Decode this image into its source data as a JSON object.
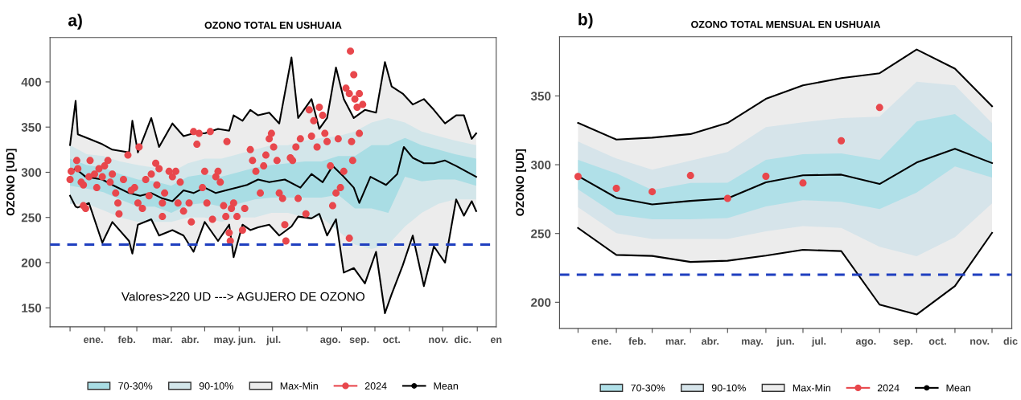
{
  "chart_data": [
    {
      "type": "line",
      "title": "OZONO TOTAL EN USHUAIA",
      "ylabel": "OZONO [UD]",
      "annotations": [
        "a)",
        "Valores>220 UD ---> AGUJERO DE OZONO"
      ],
      "xlim": [
        "2023-12-14",
        "2025-01-18"
      ],
      "ylim": [
        129,
        449
      ],
      "yticks": [
        150,
        200,
        250,
        300,
        350,
        400
      ],
      "xticks": [
        {
          "value": "2024-01-01",
          "label": null
        },
        {
          "value": "2024-02-01",
          "label": null
        },
        {
          "value": "2024-03-01",
          "label": null
        },
        {
          "value": "2024-04-01",
          "label": null
        },
        {
          "value": "2024-05-01",
          "label": null
        },
        {
          "value": "2024-06-01",
          "label": null
        },
        {
          "value": "2024-07-01",
          "label": null
        },
        {
          "value": "2024-08-01",
          "label": null
        },
        {
          "value": "2024-09-01",
          "label": null
        },
        {
          "value": "2024-10-01",
          "label": null
        },
        {
          "value": "2024-11-01",
          "label": null
        },
        {
          "value": "2024-12-01",
          "label": null
        },
        {
          "value": "2025-01-01",
          "label": null
        },
        {
          "value": "2024-01-22",
          "label": "ene."
        },
        {
          "value": "2024-02-21",
          "label": "feb."
        },
        {
          "value": "2024-03-24",
          "label": "mar."
        },
        {
          "value": "2024-04-18",
          "label": "abr."
        },
        {
          "value": "2024-05-19",
          "label": "may."
        },
        {
          "value": "2024-06-08",
          "label": "jun."
        },
        {
          "value": "2024-07-02",
          "label": "jul."
        },
        {
          "value": "2024-08-22",
          "label": "ago."
        },
        {
          "value": "2024-09-17",
          "label": "sep."
        },
        {
          "value": "2024-10-16",
          "label": "oct."
        },
        {
          "value": "2024-11-27",
          "label": "nov."
        },
        {
          "value": "2024-12-19",
          "label": "dic."
        },
        {
          "value": "2025-01-18",
          "label": "en"
        }
      ],
      "ref_lines": [
        {
          "axis": "y",
          "value": 220,
          "color": "#1f3fbf",
          "line_style": "dashed"
        }
      ],
      "legend": "bottom",
      "grid": false,
      "series": [
        {
          "name": "70-30%",
          "type": "area",
          "color": "#a9dde4",
          "x": [
            "2024-01-01",
            "2024-01-16",
            "2024-01-31",
            "2024-02-15",
            "2024-03-02",
            "2024-03-17",
            "2024-04-01",
            "2024-04-16",
            "2024-05-01",
            "2024-05-16",
            "2024-05-31",
            "2024-06-15",
            "2024-06-30",
            "2024-07-15",
            "2024-07-30",
            "2024-08-14",
            "2024-08-29",
            "2024-09-13",
            "2024-09-28",
            "2024-10-13",
            "2024-10-28",
            "2024-11-12",
            "2024-11-27",
            "2024-12-12",
            "2024-12-31"
          ],
          "values": [
            null,
            null,
            null,
            null,
            null,
            null,
            null,
            null,
            null,
            null,
            null,
            null,
            null,
            null,
            null,
            null,
            null,
            null,
            null,
            null,
            null,
            null,
            null,
            null,
            null
          ],
          "upper": [
            315,
            308,
            305,
            298,
            292,
            290,
            285,
            295,
            298,
            295,
            300,
            305,
            308,
            310,
            312,
            312,
            318,
            318,
            330,
            330,
            338,
            330,
            325,
            320,
            315
          ],
          "lower": [
            285,
            282,
            278,
            270,
            262,
            262,
            255,
            264,
            266,
            262,
            265,
            270,
            272,
            272,
            272,
            272,
            275,
            260,
            260,
            255,
            295,
            290,
            292,
            292,
            285
          ]
        },
        {
          "name": "90-10%",
          "type": "area",
          "color": "#d3e6ea",
          "x": [
            "2024-01-01",
            "2024-01-16",
            "2024-01-31",
            "2024-02-15",
            "2024-03-02",
            "2024-03-17",
            "2024-04-01",
            "2024-04-16",
            "2024-05-01",
            "2024-05-16",
            "2024-05-31",
            "2024-06-15",
            "2024-06-30",
            "2024-07-15",
            "2024-07-30",
            "2024-08-14",
            "2024-08-29",
            "2024-09-13",
            "2024-09-28",
            "2024-10-13",
            "2024-10-28",
            "2024-11-12",
            "2024-11-27",
            "2024-12-12",
            "2024-12-31"
          ],
          "values": [
            null,
            null,
            null,
            null,
            null,
            null,
            null,
            null,
            null,
            null,
            null,
            null,
            null,
            null,
            null,
            null,
            null,
            null,
            null,
            null,
            null,
            null,
            null,
            null,
            null
          ],
          "upper": [
            330,
            320,
            318,
            312,
            308,
            305,
            300,
            310,
            315,
            315,
            320,
            325,
            330,
            330,
            335,
            338,
            340,
            345,
            355,
            360,
            355,
            345,
            340,
            335,
            330
          ],
          "lower": [
            265,
            265,
            258,
            250,
            245,
            245,
            245,
            250,
            250,
            245,
            250,
            250,
            255,
            255,
            250,
            250,
            235,
            220,
            215,
            220,
            240,
            255,
            265,
            270,
            270
          ]
        },
        {
          "name": "Max-Min",
          "type": "area",
          "color": "#ececec",
          "x": [
            "2024-01-01",
            "2024-01-06",
            "2024-01-08",
            "2024-01-18",
            "2024-01-30",
            "2024-02-08",
            "2024-02-23",
            "2024-02-26",
            "2024-03-02",
            "2024-03-14",
            "2024-03-21",
            "2024-04-02",
            "2024-04-12",
            "2024-04-21",
            "2024-05-01",
            "2024-05-13",
            "2024-05-23",
            "2024-05-27",
            "2024-06-04",
            "2024-06-11",
            "2024-06-18",
            "2024-06-28",
            "2024-07-07",
            "2024-07-18",
            "2024-07-24",
            "2024-08-05",
            "2024-08-12",
            "2024-08-19",
            "2024-08-27",
            "2024-09-03",
            "2024-09-12",
            "2024-09-22",
            "2024-10-02",
            "2024-10-10",
            "2024-10-16",
            "2024-10-26",
            "2024-11-04",
            "2024-11-14",
            "2024-11-23",
            "2024-12-03",
            "2024-12-13",
            "2024-12-20",
            "2024-12-27",
            "2024-12-31"
          ],
          "values": [
            null,
            null,
            null,
            null,
            null,
            null,
            null,
            null,
            null,
            null,
            null,
            null,
            null,
            null,
            null,
            null,
            null,
            null,
            null,
            null,
            null,
            null,
            null,
            null,
            null,
            null,
            null,
            null,
            null,
            null,
            null,
            null,
            null,
            null,
            null,
            null,
            null,
            null,
            null,
            null,
            null,
            null,
            null,
            null
          ],
          "upper": [
            330,
            379,
            342,
            337,
            331,
            325,
            322,
            357,
            322,
            360,
            328,
            354,
            340,
            343,
            343,
            348,
            346,
            363,
            357,
            369,
            363,
            366,
            354,
            427,
            360,
            381,
            348,
            360,
            416,
            381,
            360,
            369,
            366,
            422,
            395,
            387,
            375,
            381,
            369,
            354,
            363,
            363,
            337,
            343
          ],
          "lower": [
            274,
            262,
            261,
            266,
            222,
            245,
            224,
            210,
            242,
            248,
            230,
            236,
            230,
            212,
            245,
            224,
            242,
            206,
            242,
            236,
            239,
            242,
            230,
            240,
            251,
            249,
            254,
            230,
            248,
            189,
            194,
            177,
            212,
            144,
            165,
            197,
            230,
            174,
            218,
            200,
            270,
            252,
            268,
            257
          ]
        },
        {
          "color": "#000000",
          "x": [
            "2024-01-01",
            "2024-01-06",
            "2024-01-08",
            "2024-01-18",
            "2024-01-30",
            "2024-02-08",
            "2024-02-23",
            "2024-02-26",
            "2024-03-02",
            "2024-03-14",
            "2024-03-21",
            "2024-04-02",
            "2024-04-12",
            "2024-04-21",
            "2024-05-01",
            "2024-05-13",
            "2024-05-23",
            "2024-05-27",
            "2024-06-04",
            "2024-06-11",
            "2024-06-18",
            "2024-06-28",
            "2024-07-07",
            "2024-07-18",
            "2024-07-24",
            "2024-08-05",
            "2024-08-12",
            "2024-08-19",
            "2024-08-27",
            "2024-09-03",
            "2024-09-12",
            "2024-09-22",
            "2024-10-02",
            "2024-10-10",
            "2024-10-16",
            "2024-10-26",
            "2024-11-04",
            "2024-11-14",
            "2024-11-23",
            "2024-12-03",
            "2024-12-13",
            "2024-12-20",
            "2024-12-27",
            "2024-12-31"
          ],
          "values": [
            330,
            379,
            342,
            337,
            331,
            325,
            322,
            357,
            322,
            360,
            328,
            354,
            340,
            343,
            343,
            348,
            346,
            363,
            357,
            369,
            363,
            366,
            354,
            427,
            360,
            381,
            348,
            360,
            416,
            381,
            360,
            369,
            366,
            422,
            395,
            387,
            375,
            381,
            369,
            354,
            363,
            363,
            337,
            343
          ]
        },
        {
          "color": "#000000",
          "x": [
            "2024-01-01",
            "2024-01-06",
            "2024-01-08",
            "2024-01-18",
            "2024-01-30",
            "2024-02-08",
            "2024-02-23",
            "2024-02-26",
            "2024-03-02",
            "2024-03-14",
            "2024-03-21",
            "2024-04-02",
            "2024-04-12",
            "2024-04-21",
            "2024-05-01",
            "2024-05-13",
            "2024-05-23",
            "2024-05-27",
            "2024-06-04",
            "2024-06-11",
            "2024-06-18",
            "2024-06-28",
            "2024-07-07",
            "2024-07-18",
            "2024-07-24",
            "2024-08-05",
            "2024-08-12",
            "2024-08-19",
            "2024-08-27",
            "2024-09-03",
            "2024-09-12",
            "2024-09-22",
            "2024-10-02",
            "2024-10-10",
            "2024-10-16",
            "2024-10-26",
            "2024-11-04",
            "2024-11-14",
            "2024-11-23",
            "2024-12-03",
            "2024-12-13",
            "2024-12-20",
            "2024-12-27",
            "2024-12-31"
          ],
          "values": [
            274,
            262,
            261,
            266,
            222,
            245,
            224,
            210,
            242,
            248,
            230,
            236,
            230,
            212,
            245,
            224,
            242,
            206,
            242,
            236,
            239,
            242,
            230,
            240,
            251,
            249,
            254,
            230,
            248,
            189,
            194,
            177,
            212,
            144,
            165,
            197,
            230,
            174,
            218,
            200,
            270,
            252,
            268,
            257
          ]
        },
        {
          "name": "2024",
          "type": "scatter",
          "color": "#e8474c",
          "x": [
            "2024-01-01",
            "2024-01-02",
            "2024-01-07",
            "2024-01-08",
            "2024-01-11",
            "2024-01-13",
            "2024-01-13",
            "2024-01-15",
            "2024-01-18",
            "2024-01-19",
            "2024-01-23",
            "2024-01-25",
            "2024-01-27",
            "2024-01-30",
            "2024-02-01",
            "2024-02-04",
            "2024-02-06",
            "2024-02-08",
            "2024-02-11",
            "2024-02-13",
            "2024-02-14",
            "2024-02-18",
            "2024-02-22",
            "2024-02-25",
            "2024-02-28",
            "2024-03-02",
            "2024-03-03",
            "2024-03-06",
            "2024-03-09",
            "2024-03-12",
            "2024-03-14",
            "2024-03-18",
            "2024-03-19",
            "2024-03-21",
            "2024-03-24",
            "2024-03-24",
            "2024-03-26",
            "2024-03-30",
            "2024-04-02",
            "2024-04-05",
            "2024-04-07",
            "2024-04-09",
            "2024-04-12",
            "2024-04-17",
            "2024-04-19",
            "2024-04-21",
            "2024-04-24",
            "2024-04-26",
            "2024-04-29",
            "2024-05-01",
            "2024-05-03",
            "2024-05-06",
            "2024-05-08",
            "2024-05-11",
            "2024-05-13",
            "2024-05-15",
            "2024-05-18",
            "2024-05-20",
            "2024-05-21",
            "2024-05-23",
            "2024-05-24",
            "2024-05-25",
            "2024-05-27",
            "2024-05-30",
            "2024-06-04",
            "2024-06-06",
            "2024-06-11",
            "2024-06-13",
            "2024-06-16",
            "2024-06-20",
            "2024-06-23",
            "2024-06-25",
            "2024-06-28",
            "2024-06-30",
            "2024-07-02",
            "2024-07-05",
            "2024-07-07",
            "2024-07-10",
            "2024-07-12",
            "2024-07-13",
            "2024-07-17",
            "2024-07-19",
            "2024-07-22",
            "2024-07-24",
            "2024-07-26",
            "2024-07-31",
            "2024-08-03",
            "2024-08-05",
            "2024-08-07",
            "2024-08-10",
            "2024-08-12",
            "2024-08-15",
            "2024-08-17",
            "2024-08-19",
            "2024-08-22",
            "2024-08-24",
            "2024-08-27",
            "2024-08-29",
            "2024-08-31",
            "2024-09-03",
            "2024-09-05",
            "2024-09-08",
            "2024-09-08",
            "2024-09-09",
            "2024-09-10",
            "2024-09-11",
            "2024-09-12",
            "2024-09-13",
            "2024-09-15",
            "2024-09-17",
            "2024-09-17",
            "2024-09-20"
          ],
          "values": [
            292,
            301,
            313,
            304,
            289,
            286,
            263,
            260,
            295,
            313,
            298,
            283,
            304,
            295,
            307,
            313,
            289,
            298,
            277,
            266,
            254,
            292,
            319,
            280,
            283,
            266,
            328,
            260,
            292,
            274,
            298,
            310,
            286,
            304,
            266,
            251,
            277,
            301,
            295,
            301,
            266,
            289,
            257,
            266,
            245,
            345,
            331,
            343,
            283,
            301,
            266,
            345,
            248,
            295,
            301,
            289,
            263,
            251,
            334,
            233,
            224,
            260,
            266,
            251,
            236,
            260,
            325,
            313,
            301,
            277,
            307,
            319,
            337,
            343,
            328,
            313,
            277,
            271,
            242,
            224,
            316,
            313,
            328,
            271,
            337,
            254,
            369,
            340,
            357,
            328,
            372,
            363,
            343,
            334,
            307,
            263,
            277,
            337,
            283,
            301,
            393,
            387,
            227,
            434,
            334,
            313,
            408,
            381,
            372,
            387,
            343,
            375
          ]
        },
        {
          "name": "Mean",
          "color": "#000000",
          "x": [
            "2024-01-01",
            "2024-01-06",
            "2024-01-15",
            "2024-01-30",
            "2024-02-08",
            "2024-02-23",
            "2024-03-04",
            "2024-03-14",
            "2024-03-24",
            "2024-04-02",
            "2024-04-12",
            "2024-04-21",
            "2024-05-01",
            "2024-05-11",
            "2024-05-20",
            "2024-05-30",
            "2024-06-08",
            "2024-06-18",
            "2024-06-28",
            "2024-07-12",
            "2024-07-26",
            "2024-08-05",
            "2024-08-15",
            "2024-08-24",
            "2024-09-03",
            "2024-09-12",
            "2024-09-17",
            "2024-09-27",
            "2024-10-11",
            "2024-10-21",
            "2024-10-27",
            "2024-11-04",
            "2024-11-14",
            "2024-11-23",
            "2024-12-03",
            "2024-12-13",
            "2024-12-22",
            "2024-12-31"
          ],
          "values": [
            301,
            304,
            295,
            292,
            286,
            277,
            274,
            277,
            271,
            268,
            280,
            277,
            283,
            277,
            280,
            283,
            286,
            292,
            289,
            292,
            283,
            298,
            289,
            307,
            295,
            283,
            266,
            295,
            286,
            298,
            328,
            316,
            310,
            310,
            313,
            307,
            301,
            295
          ]
        }
      ]
    },
    {
      "type": "line",
      "title": "OZONO TOTAL MENSUAL EN USHUAIA",
      "ylabel": "OZONO [UD]",
      "annotations": [
        "b)"
      ],
      "x": [
        "2024-01-01",
        "2024-02-01",
        "2024-03-01",
        "2024-04-01",
        "2024-05-01",
        "2024-06-01",
        "2024-07-01",
        "2024-08-01",
        "2024-09-01",
        "2024-10-01",
        "2024-11-01",
        "2024-12-01"
      ],
      "xlim": [
        "2023-12-17",
        "2024-12-17"
      ],
      "ylim": [
        181,
        393
      ],
      "yticks": [
        200,
        250,
        300,
        350
      ],
      "xticks": [
        {
          "value": "2024-01-01",
          "label": null
        },
        {
          "value": "2024-02-01",
          "label": null
        },
        {
          "value": "2024-03-01",
          "label": null
        },
        {
          "value": "2024-04-01",
          "label": null
        },
        {
          "value": "2024-05-01",
          "label": null
        },
        {
          "value": "2024-06-01",
          "label": null
        },
        {
          "value": "2024-07-01",
          "label": null
        },
        {
          "value": "2024-08-01",
          "label": null
        },
        {
          "value": "2024-09-01",
          "label": null
        },
        {
          "value": "2024-10-01",
          "label": null
        },
        {
          "value": "2024-11-01",
          "label": null
        },
        {
          "value": "2024-12-01",
          "label": null
        },
        {
          "value": "2024-01-20",
          "label": "ene."
        },
        {
          "value": "2024-02-18",
          "label": "feb."
        },
        {
          "value": "2024-03-20",
          "label": "mar."
        },
        {
          "value": "2024-04-17",
          "label": "abr."
        },
        {
          "value": "2024-05-21",
          "label": "may."
        },
        {
          "value": "2024-06-17",
          "label": "jun."
        },
        {
          "value": "2024-07-14",
          "label": "jul."
        },
        {
          "value": "2024-08-21",
          "label": "ago."
        },
        {
          "value": "2024-09-20",
          "label": "sep."
        },
        {
          "value": "2024-10-18",
          "label": "oct."
        },
        {
          "value": "2024-11-21",
          "label": "nov."
        },
        {
          "value": "2024-12-16",
          "label": "dic"
        }
      ],
      "ref_lines": [
        {
          "axis": "y",
          "value": 220,
          "color": "#1f3fbf",
          "line_style": "dashed"
        }
      ],
      "legend": "bottom",
      "grid": false,
      "series": [
        {
          "name": "70-30%",
          "type": "area",
          "color": "#b0e0e8",
          "values": [
            null,
            null,
            null,
            null,
            null,
            null,
            null,
            null,
            null,
            null,
            null,
            null
          ],
          "upper": [
            303.5,
            293.7,
            281.6,
            286.7,
            286.9,
            303.5,
            307.7,
            308.2,
            303.5,
            331.4,
            336.8,
            315.8
          ],
          "lower": [
            282.1,
            263.7,
            260.4,
            260.4,
            261.2,
            269.7,
            274.2,
            273.0,
            267.8,
            279.7,
            298.8,
            290.7
          ]
        },
        {
          "name": "90-10%",
          "type": "area",
          "color": "#d6e4ea",
          "values": [
            null,
            null,
            null,
            null,
            null,
            null,
            null,
            null,
            null,
            null,
            null,
            null
          ],
          "upper": [
            316.9,
            304.5,
            296.4,
            302.9,
            309.2,
            327.4,
            330.9,
            333.9,
            334.9,
            360.3,
            357.7,
            330.3
          ],
          "lower": [
            269.1,
            250.2,
            246.0,
            246.0,
            246.0,
            251.6,
            255.4,
            254.0,
            240.4,
            233.5,
            247.4,
            271.9
          ]
        },
        {
          "name": "Max-Min",
          "type": "area",
          "color": "#ececec",
          "values": [
            null,
            null,
            null,
            null,
            null,
            null,
            null,
            null,
            null,
            null,
            null,
            null
          ],
          "upper": [
            330.4,
            318.3,
            319.7,
            322.3,
            330.4,
            347.9,
            357.7,
            363.0,
            366.5,
            383.8,
            369.8,
            342.5
          ],
          "lower": [
            254.0,
            234.4,
            233.7,
            229.3,
            230.2,
            233.9,
            238.1,
            237.2,
            198.3,
            191.1,
            211.8,
            250.5
          ]
        },
        {
          "color": "#000000",
          "values": [
            330.4,
            318.3,
            319.7,
            322.3,
            330.4,
            347.9,
            357.7,
            363.0,
            366.5,
            383.8,
            369.8,
            342.5
          ]
        },
        {
          "color": "#000000",
          "values": [
            254.0,
            234.4,
            233.7,
            229.3,
            230.2,
            233.9,
            238.1,
            237.2,
            198.3,
            191.1,
            211.8,
            250.5
          ]
        },
        {
          "name": "2024",
          "type": "scatter",
          "color": "#e8474c",
          "values": [
            291.4,
            282.8,
            280.4,
            292.1,
            275.5,
            291.6,
            286.7,
            317.4,
            341.6,
            null,
            null,
            null
          ]
        },
        {
          "name": "Mean",
          "color": "#000000",
          "values": [
            291.8,
            276.0,
            271.1,
            273.7,
            275.5,
            287.2,
            292.3,
            292.8,
            286.0,
            301.6,
            311.6,
            301.2
          ]
        }
      ]
    }
  ]
}
